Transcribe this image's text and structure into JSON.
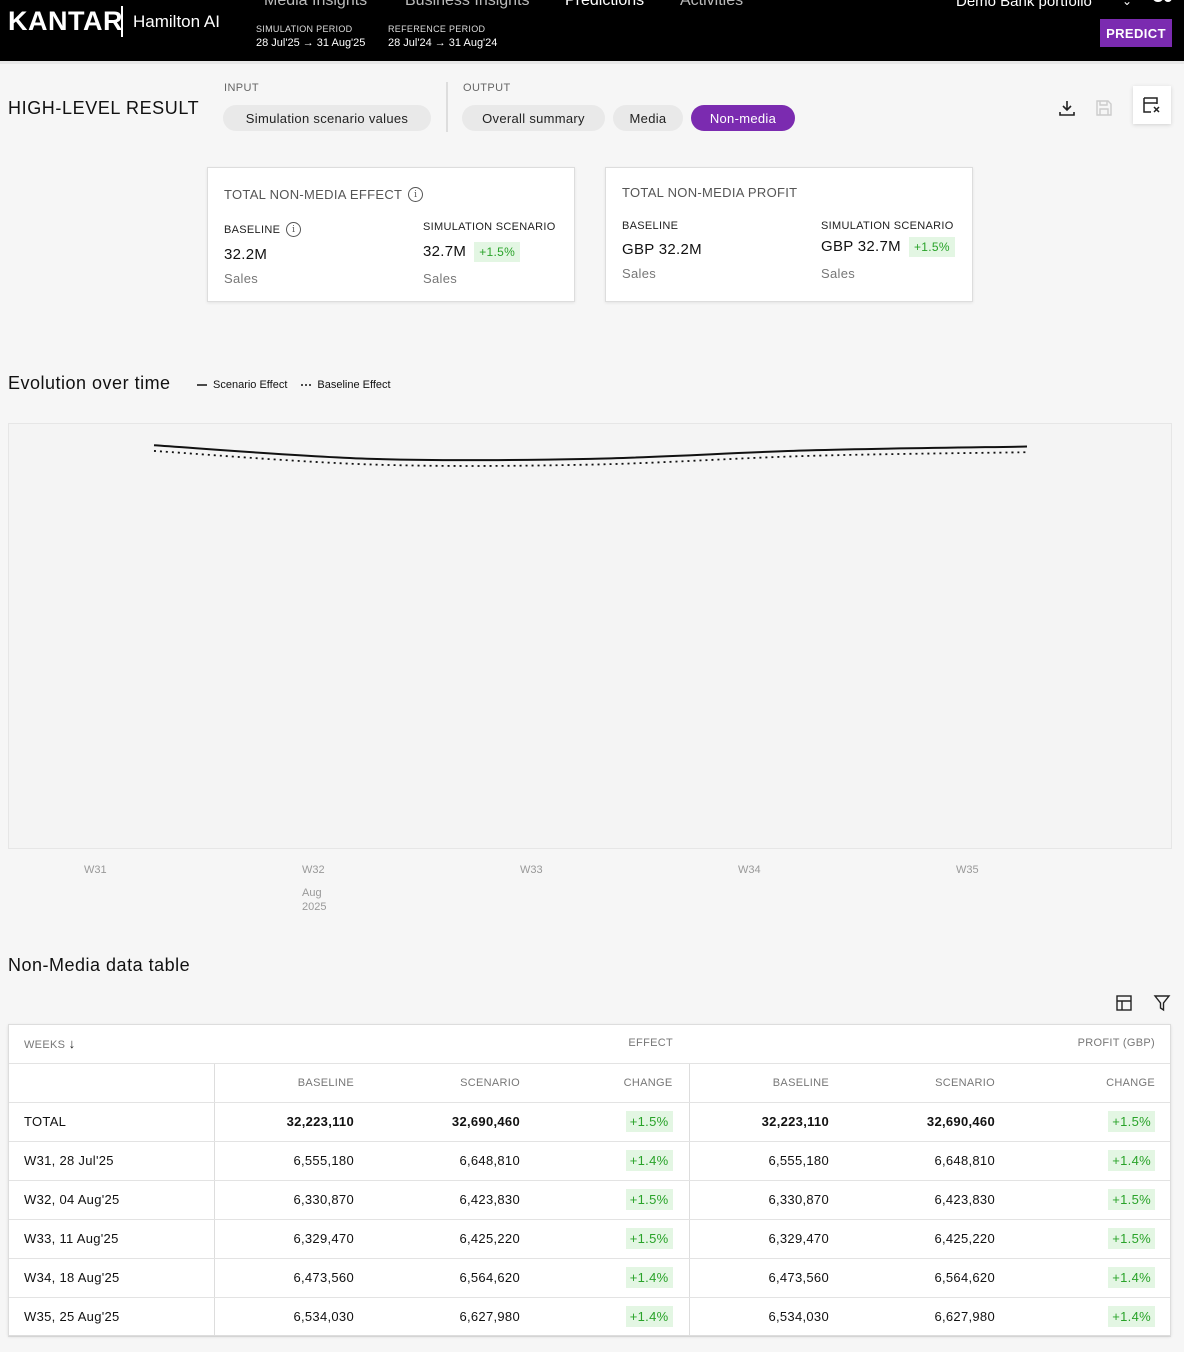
{
  "app": {
    "brand": "KANTAR",
    "product": "Hamilton AI",
    "nav": [
      "Media Insights",
      "Business Insights",
      "Predictions",
      "Activities"
    ],
    "active_nav": "Predictions",
    "simulation_period_label": "SIMULATION PERIOD",
    "simulation_period_value": "28 Jul'25 → 31 Aug'25",
    "reference_period_label": "REFERENCE PERIOD",
    "reference_period_value": "28 Jul'24 → 31 Aug'24",
    "portfolio": "Demo Bank portfolio",
    "predict_label": "PREDICT",
    "accent_color": "#7b2bb0"
  },
  "header": {
    "title": "HIGH-LEVEL RESULT",
    "input_label": "INPUT",
    "input_pill": "Simulation scenario values",
    "output_label": "OUTPUT",
    "output_pills": [
      "Overall summary",
      "Media",
      "Non-media"
    ],
    "active_output": "Non-media",
    "icons": [
      "download-icon",
      "save-icon",
      "table-settings-icon"
    ]
  },
  "cards": [
    {
      "title": "TOTAL NON-MEDIA EFFECT",
      "baseline_label": "BASELINE",
      "baseline_value": "32.2M",
      "baseline_sub": "Sales",
      "scenario_label": "SIMULATION SCENARIO",
      "scenario_value": "32.7M",
      "scenario_change": "+1.5%",
      "scenario_sub": "Sales"
    },
    {
      "title": "TOTAL NON-MEDIA PROFIT",
      "baseline_label": "BASELINE",
      "baseline_value": "GBP 32.2M",
      "baseline_sub": "Sales",
      "scenario_label": "SIMULATION SCENARIO",
      "scenario_value": "GBP 32.7M",
      "scenario_change": "+1.5%",
      "scenario_sub": "Sales"
    }
  ],
  "chart": {
    "title": "Evolution over time",
    "legend": [
      "Scenario Effect",
      "Baseline Effect"
    ],
    "x_ticks": [
      "W31",
      "W32",
      "W33",
      "W34",
      "W35"
    ],
    "x_sub_month": "Aug",
    "x_sub_year": "2025"
  },
  "chart_data": {
    "type": "line",
    "title": "Evolution over time",
    "x": [
      "W31",
      "W32",
      "W33",
      "W34",
      "W35"
    ],
    "series": [
      {
        "name": "Scenario Effect",
        "style": "solid",
        "values": [
          6648810,
          6423830,
          6425220,
          6564620,
          6627980
        ]
      },
      {
        "name": "Baseline Effect",
        "style": "dotted",
        "values": [
          6555180,
          6330870,
          6329470,
          6473560,
          6534030
        ]
      }
    ],
    "ylim": [
      0,
      7000000
    ],
    "grid": false,
    "legend_position": "top-left"
  },
  "table": {
    "title": "Non-Media data table",
    "col_weeks": "WEEKS",
    "group_effect": "EFFECT",
    "group_profit": "PROFIT (GBP)",
    "sub_headers": [
      "BASELINE",
      "SCENARIO",
      "CHANGE",
      "BASELINE",
      "SCENARIO",
      "CHANGE"
    ],
    "rows": [
      {
        "week": "TOTAL",
        "eb": "32,223,110",
        "es": "32,690,460",
        "ec": "+1.5%",
        "pb": "32,223,110",
        "ps": "32,690,460",
        "pc": "+1.5%"
      },
      {
        "week": "W31, 28 Jul'25",
        "eb": "6,555,180",
        "es": "6,648,810",
        "ec": "+1.4%",
        "pb": "6,555,180",
        "ps": "6,648,810",
        "pc": "+1.4%"
      },
      {
        "week": "W32, 04 Aug'25",
        "eb": "6,330,870",
        "es": "6,423,830",
        "ec": "+1.5%",
        "pb": "6,330,870",
        "ps": "6,423,830",
        "pc": "+1.5%"
      },
      {
        "week": "W33, 11 Aug'25",
        "eb": "6,329,470",
        "es": "6,425,220",
        "ec": "+1.5%",
        "pb": "6,329,470",
        "ps": "6,425,220",
        "pc": "+1.5%"
      },
      {
        "week": "W34, 18 Aug'25",
        "eb": "6,473,560",
        "es": "6,564,620",
        "ec": "+1.4%",
        "pb": "6,473,560",
        "ps": "6,564,620",
        "pc": "+1.4%"
      },
      {
        "week": "W35, 25 Aug'25",
        "eb": "6,534,030",
        "es": "6,627,980",
        "ec": "+1.4%",
        "pb": "6,534,030",
        "ps": "6,627,980",
        "pc": "+1.4%"
      }
    ]
  }
}
